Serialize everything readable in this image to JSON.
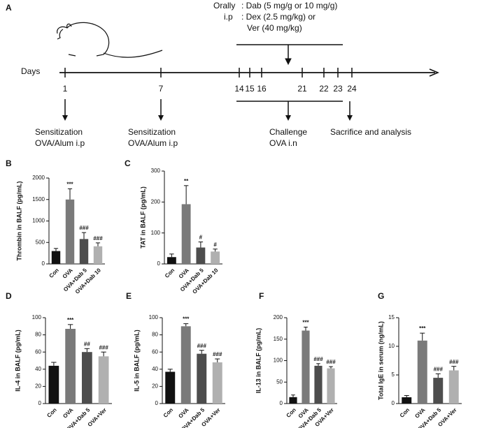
{
  "diagram": {
    "panel": "A",
    "treatment": [
      {
        "route": "Orally",
        "text": ": Dab (5 mg/g or 10 mg/g)"
      },
      {
        "route": "i.p",
        "text": ": Dex (2.5 mg/kg) or"
      },
      {
        "route": null,
        "text": "Ver (40 mg/kg)"
      }
    ],
    "axis_label": "Days",
    "days": [
      "1",
      "7",
      "14",
      "15",
      "16",
      "21",
      "22",
      "23",
      "24"
    ],
    "events": [
      [
        "Sensitization",
        "OVA/Alum i.p"
      ],
      [
        "Sensitization",
        "OVA/Alum i.p"
      ],
      [
        "Challenge",
        "OVA i.n"
      ],
      [
        "Sacrifice and analysis"
      ]
    ]
  },
  "chart_data": [
    {
      "type": "bar",
      "panel": "B",
      "y_label": "Thrombin in BALF (pg/mL)",
      "categories": [
        "Con",
        "OVA",
        "OVA+Dab 5",
        "OVA+Dab 10"
      ],
      "values": [
        300,
        1500,
        580,
        410
      ],
      "errors": [
        60,
        250,
        150,
        80
      ],
      "colors": [
        "#111111",
        "#7a7a7a",
        "#4d4d4d",
        "#b0b0b0"
      ],
      "significance": [
        null,
        "***",
        "###",
        "###"
      ],
      "ylim": [
        0,
        2000
      ],
      "yticks": [
        0,
        500,
        1000,
        1500,
        2000
      ]
    },
    {
      "type": "bar",
      "panel": "C",
      "y_label": "TAT in BALF  (pg/mL)",
      "categories": [
        "Con",
        "OVA",
        "OVA+Dab 5",
        "OVA+Dab 10"
      ],
      "values": [
        22,
        193,
        53,
        40
      ],
      "errors": [
        10,
        60,
        18,
        8
      ],
      "colors": [
        "#111111",
        "#7a7a7a",
        "#4d4d4d",
        "#b0b0b0"
      ],
      "significance": [
        null,
        "**",
        "#",
        "#"
      ],
      "ylim": [
        0,
        300
      ],
      "yticks": [
        0,
        100,
        200,
        300
      ]
    },
    {
      "type": "bar",
      "panel": "D",
      "y_label": "IL-4 in BALF (pg/mL)",
      "categories": [
        "Con",
        "OVA",
        "OVA+Dab 5",
        "OVA+Ver"
      ],
      "values": [
        44,
        87,
        60,
        55
      ],
      "errors": [
        4,
        5,
        4,
        5
      ],
      "colors": [
        "#111111",
        "#7a7a7a",
        "#4d4d4d",
        "#b0b0b0"
      ],
      "significance": [
        null,
        "***",
        "##",
        "###"
      ],
      "ylim": [
        0,
        100
      ],
      "yticks": [
        0,
        20,
        40,
        60,
        80,
        100
      ]
    },
    {
      "type": "bar",
      "panel": "E",
      "y_label": "IL-5 in BALF (pg/mL)",
      "categories": [
        "Con",
        "OVA",
        "OVA+Dab 5",
        "OVA+Ver"
      ],
      "values": [
        37,
        90,
        58,
        48
      ],
      "errors": [
        3,
        3,
        4,
        4
      ],
      "colors": [
        "#111111",
        "#7a7a7a",
        "#4d4d4d",
        "#b0b0b0"
      ],
      "significance": [
        null,
        "***",
        "###",
        "###"
      ],
      "ylim": [
        0,
        100
      ],
      "yticks": [
        0,
        20,
        40,
        60,
        80,
        100
      ]
    },
    {
      "type": "bar",
      "panel": "F",
      "y_label": "IL-13 in BALF (pg/mL)",
      "categories": [
        "Con",
        "OVA",
        "OVA+Dab 5",
        "OVA+Ver"
      ],
      "values": [
        15,
        170,
        88,
        82
      ],
      "errors": [
        5,
        8,
        5,
        4
      ],
      "colors": [
        "#111111",
        "#7a7a7a",
        "#4d4d4d",
        "#b0b0b0"
      ],
      "significance": [
        null,
        "***",
        "###",
        "###"
      ],
      "ylim": [
        0,
        200
      ],
      "yticks": [
        0,
        50,
        100,
        150,
        200
      ]
    },
    {
      "type": "bar",
      "panel": "G",
      "y_label": "Total IgE in serum  (ng/mL)",
      "categories": [
        "Con",
        "OVA",
        "OVA+Dab 5",
        "OVA+Ver"
      ],
      "values": [
        1.1,
        11,
        4.5,
        5.8
      ],
      "errors": [
        0.3,
        1.3,
        0.7,
        0.7
      ],
      "colors": [
        "#111111",
        "#7a7a7a",
        "#4d4d4d",
        "#b0b0b0"
      ],
      "significance": [
        null,
        "***",
        "###",
        "###"
      ],
      "ylim": [
        0,
        15
      ],
      "yticks": [
        0,
        5,
        10,
        15
      ]
    }
  ]
}
